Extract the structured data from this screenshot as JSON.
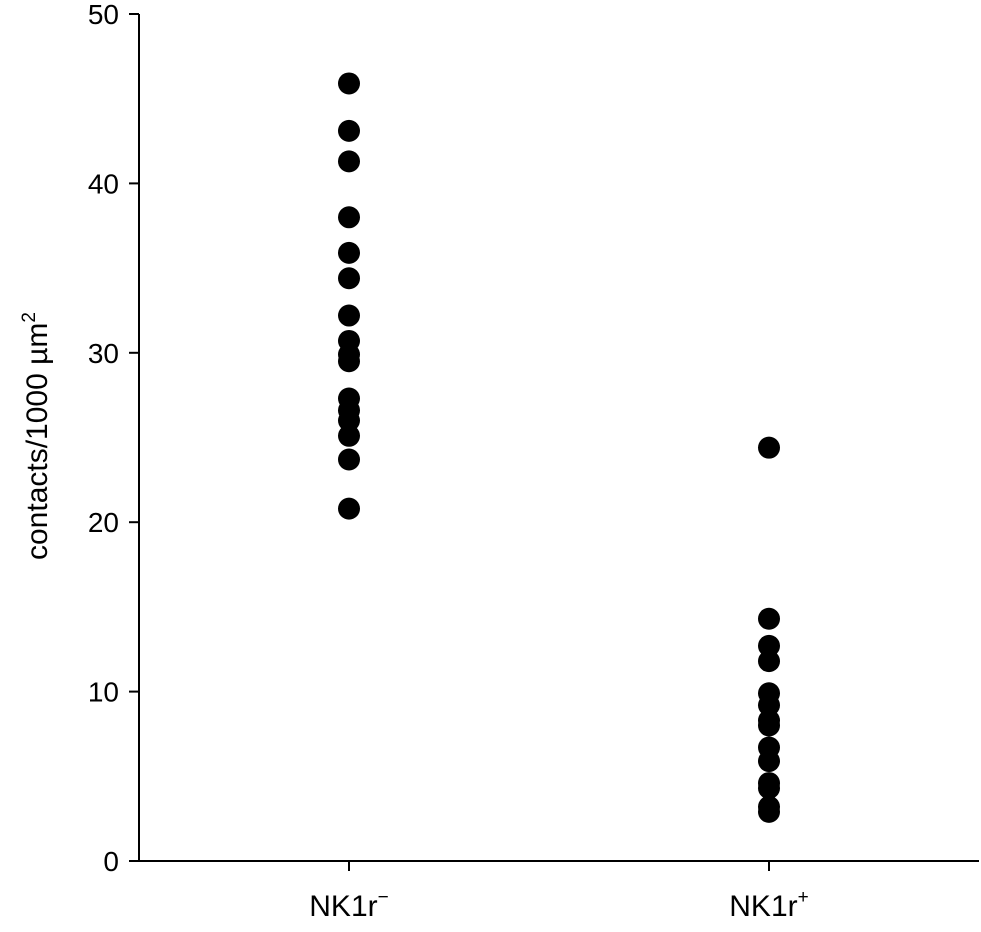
{
  "chart_data": {
    "type": "scatter",
    "title": "",
    "xlabel": "",
    "ylabel": {
      "text": "contacts/1000 µm",
      "superscript": "2"
    },
    "ylim": [
      0,
      50
    ],
    "yticks": [
      0,
      10,
      20,
      30,
      40,
      50
    ],
    "ytick_labels": [
      "0",
      "10",
      "20",
      "30",
      "40",
      "50"
    ],
    "grid": false,
    "legend": "none",
    "marker_color": "#000000",
    "categories": [
      {
        "label": "NK1r",
        "superscript": "−"
      },
      {
        "label": "NK1r",
        "superscript": "+"
      }
    ],
    "series": [
      {
        "category_index": 0,
        "values": [
          45.9,
          43.1,
          41.3,
          38.0,
          35.9,
          34.4,
          32.2,
          30.7,
          29.9,
          29.5,
          27.3,
          26.6,
          26.0,
          25.1,
          23.7,
          20.8
        ]
      },
      {
        "category_index": 1,
        "values": [
          24.4,
          14.3,
          12.7,
          11.8,
          9.9,
          9.2,
          8.3,
          8.0,
          6.7,
          5.9,
          4.6,
          4.3,
          3.2,
          2.9
        ]
      }
    ]
  }
}
